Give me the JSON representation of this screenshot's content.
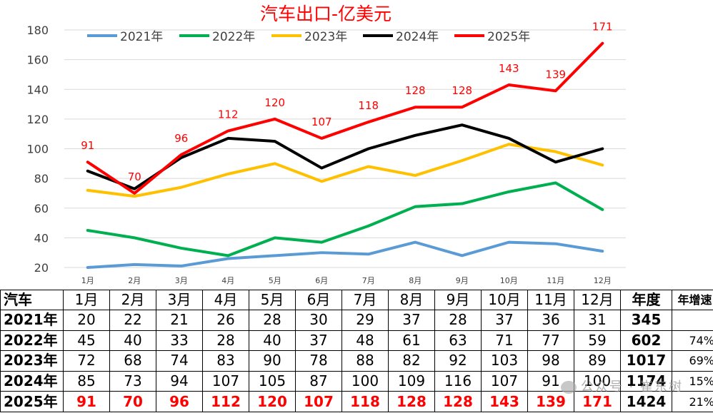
{
  "chart_data": {
    "type": "line",
    "title": "汽车出口-亿美元",
    "categories": [
      "1月",
      "2月",
      "3月",
      "4月",
      "5月",
      "6月",
      "7月",
      "8月",
      "9月",
      "10月",
      "11月",
      "12月"
    ],
    "ylim": [
      20,
      180
    ],
    "yticks": [
      20,
      40,
      60,
      80,
      100,
      120,
      140,
      160,
      180
    ],
    "grid": true,
    "legend_position": "top",
    "series": [
      {
        "name": "2021年",
        "color": "#5b9bd5",
        "values": [
          20,
          22,
          21,
          26,
          28,
          30,
          29,
          37,
          28,
          37,
          36,
          31
        ]
      },
      {
        "name": "2022年",
        "color": "#00b050",
        "values": [
          45,
          40,
          33,
          28,
          40,
          37,
          48,
          61,
          63,
          71,
          77,
          59
        ]
      },
      {
        "name": "2023年",
        "color": "#ffc000",
        "values": [
          72,
          68,
          74,
          83,
          90,
          78,
          88,
          82,
          92,
          103,
          98,
          89
        ]
      },
      {
        "name": "2024年",
        "color": "#000000",
        "values": [
          85,
          73,
          94,
          107,
          105,
          87,
          100,
          109,
          116,
          107,
          91,
          100
        ]
      },
      {
        "name": "2025年",
        "color": "#ff0000",
        "values": [
          91,
          70,
          96,
          112,
          120,
          107,
          118,
          128,
          128,
          143,
          139,
          171
        ],
        "labeled": true
      }
    ]
  },
  "table": {
    "corner": "汽车",
    "months": [
      "1月",
      "2月",
      "3月",
      "4月",
      "5月",
      "6月",
      "7月",
      "8月",
      "9月",
      "10月",
      "11月",
      "12月"
    ],
    "total_header": "年度",
    "growth_header": "年增速",
    "rows": [
      {
        "year": "2021年",
        "values": [
          "20",
          "22",
          "21",
          "26",
          "28",
          "30",
          "29",
          "37",
          "28",
          "37",
          "36",
          "31"
        ],
        "total": "345",
        "growth": ""
      },
      {
        "year": "2022年",
        "values": [
          "45",
          "40",
          "33",
          "28",
          "40",
          "37",
          "48",
          "61",
          "63",
          "71",
          "77",
          "59"
        ],
        "total": "602",
        "growth": "74%"
      },
      {
        "year": "2023年",
        "values": [
          "72",
          "68",
          "74",
          "83",
          "90",
          "78",
          "88",
          "82",
          "92",
          "103",
          "98",
          "89"
        ],
        "total": "1017",
        "growth": "69%"
      },
      {
        "year": "2024年",
        "values": [
          "85",
          "73",
          "94",
          "107",
          "105",
          "87",
          "100",
          "109",
          "116",
          "107",
          "91",
          "100"
        ],
        "total": "1174",
        "growth": "15%"
      },
      {
        "year": "2025年",
        "values": [
          "91",
          "70",
          "96",
          "112",
          "120",
          "107",
          "118",
          "128",
          "128",
          "143",
          "139",
          "171"
        ],
        "total": "1424",
        "growth": "21%",
        "highlight": true
      }
    ]
  },
  "watermark": "公众号 · 崔东树"
}
